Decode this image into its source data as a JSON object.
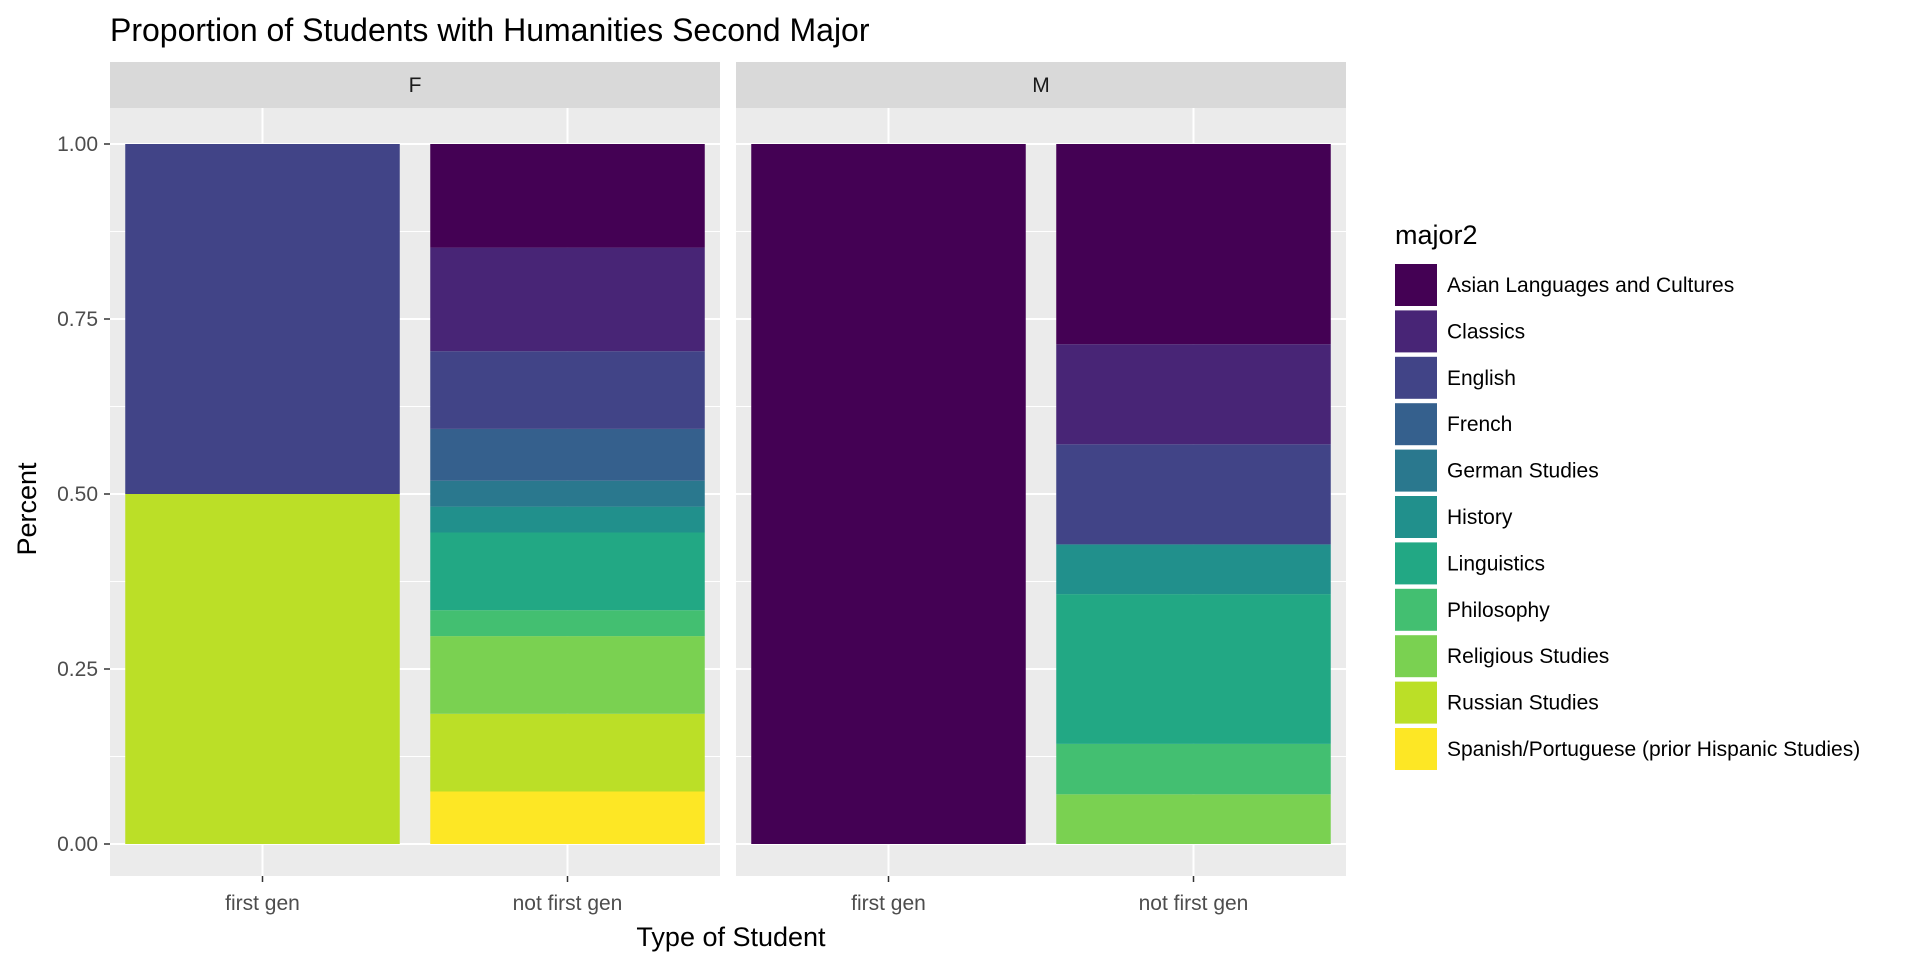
{
  "chart_data": {
    "type": "bar",
    "stacked": true,
    "position": "fill",
    "title": "Proportion of Students with Humanities Second Major",
    "xlabel": "Type of Student",
    "ylabel": "Percent",
    "ylim": [
      0,
      1
    ],
    "yticks": [
      0,
      0.25,
      0.5,
      0.75,
      1
    ],
    "ytick_labels": [
      "0.00",
      "0.25",
      "0.50",
      "0.75",
      "1.00"
    ],
    "categories": [
      "first gen",
      "not first gen"
    ],
    "facets": [
      "F",
      "M"
    ],
    "grid": true,
    "legend_position": "right",
    "legend_title": "major2",
    "series": [
      {
        "name": "Asian Languages and Cultures",
        "color": "#440154"
      },
      {
        "name": "Classics",
        "color": "#482576"
      },
      {
        "name": "English",
        "color": "#414487"
      },
      {
        "name": "French",
        "color": "#35608D"
      },
      {
        "name": "German Studies",
        "color": "#2A788E"
      },
      {
        "name": "History",
        "color": "#21908C"
      },
      {
        "name": "Linguistics",
        "color": "#22A884"
      },
      {
        "name": "Philosophy",
        "color": "#43BF71"
      },
      {
        "name": "Religious Studies",
        "color": "#7AD151"
      },
      {
        "name": "Russian Studies",
        "color": "#BBDF27"
      },
      {
        "name": "Spanish/Portuguese (prior Hispanic Studies)",
        "color": "#FDE725"
      }
    ],
    "values": {
      "F": {
        "first gen": {
          "English": 0.5,
          "Russian Studies": 0.5
        },
        "not first gen": {
          "Asian Languages and Cultures": 0.148,
          "Classics": 0.148,
          "English": 0.111,
          "French": 0.074,
          "German Studies": 0.037,
          "History": 0.037,
          "Linguistics": 0.111,
          "Philosophy": 0.037,
          "Religious Studies": 0.111,
          "Russian Studies": 0.111,
          "Spanish/Portuguese (prior Hispanic Studies)": 0.075
        }
      },
      "M": {
        "first gen": {
          "Asian Languages and Cultures": 1.0
        },
        "not first gen": {
          "Asian Languages and Cultures": 0.286,
          "Classics": 0.143,
          "English": 0.143,
          "History": 0.071,
          "Linguistics": 0.214,
          "Philosophy": 0.072,
          "Religious Studies": 0.071
        }
      }
    }
  }
}
